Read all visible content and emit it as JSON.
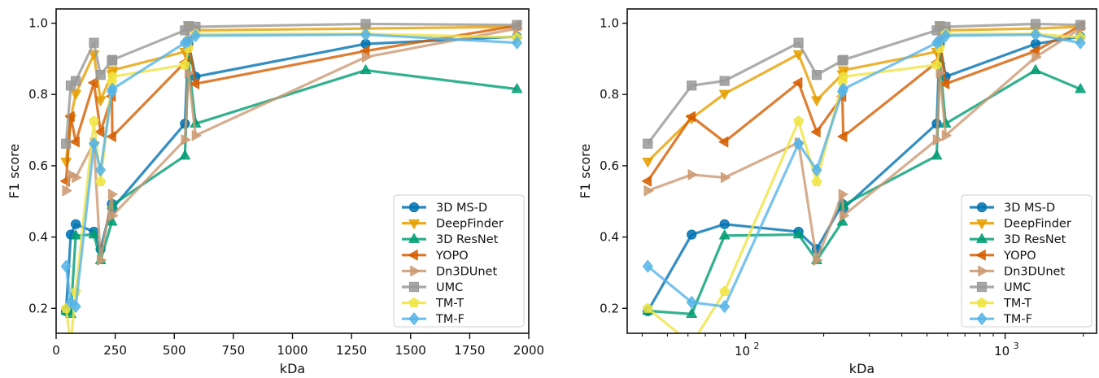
{
  "chart_data": [
    {
      "type": "line",
      "xscale": "linear",
      "xlabel": "kDa",
      "ylabel": "F1 score",
      "xlim": [
        0,
        2000
      ],
      "ylim": [
        0.13,
        1.04
      ],
      "xticks": [
        0,
        250,
        500,
        750,
        1000,
        1250,
        1500,
        1750,
        2000
      ],
      "xtick_labels": [
        "0",
        "250",
        "500",
        "750",
        "1000",
        "1250",
        "1500",
        "1750",
        "2000"
      ],
      "yticks": [
        0.2,
        0.4,
        0.6,
        0.8,
        1.0
      ],
      "ytick_labels": [
        "0.2",
        "0.4",
        "0.6",
        "0.8",
        "1.0"
      ],
      "grid": false,
      "legend_position": "lower-right",
      "x": [
        42,
        62,
        83,
        160,
        188,
        236,
        238,
        545,
        560,
        590,
        1310,
        1950
      ],
      "series": [
        {
          "name": "3D MS-D",
          "color": "#0072b2",
          "marker": "circle",
          "values": [
            0.192,
            0.407,
            0.436,
            0.415,
            0.366,
            0.493,
            0.48,
            0.718,
            0.944,
            0.85,
            0.942,
            0.962
          ]
        },
        {
          "name": "DeepFinder",
          "color": "#e69f00",
          "marker": "triangle-down",
          "values": [
            0.612,
            0.733,
            0.802,
            0.913,
            0.784,
            0.857,
            0.868,
            0.92,
            0.995,
            0.98,
            0.985,
            0.99
          ]
        },
        {
          "name": "3D ResNet",
          "color": "#009e73",
          "marker": "triangle-up",
          "values": [
            0.193,
            0.184,
            0.404,
            0.407,
            0.335,
            0.443,
            0.49,
            0.628,
            0.895,
            0.718,
            0.868,
            0.815
          ]
        },
        {
          "name": "YOPO",
          "color": "#d55e00",
          "marker": "triangle-left",
          "values": [
            0.557,
            0.738,
            0.667,
            0.833,
            0.695,
            0.795,
            0.682,
            0.89,
            0.95,
            0.83,
            0.922,
            0.993
          ]
        },
        {
          "name": "Dn3DUnet",
          "color": "#cc9a73",
          "marker": "triangle-right",
          "values": [
            0.53,
            0.575,
            0.567,
            0.665,
            0.335,
            0.52,
            0.46,
            0.673,
            0.86,
            0.685,
            0.905,
            0.985
          ]
        },
        {
          "name": "UMC",
          "color": "#999999",
          "marker": "square",
          "values": [
            0.662,
            0.825,
            0.838,
            0.945,
            0.855,
            0.895,
            0.897,
            0.98,
            0.99,
            0.99,
            0.998,
            0.995
          ]
        },
        {
          "name": "TM-T",
          "color": "#f0e442",
          "marker": "pentagon",
          "values": [
            0.2,
            0.1,
            0.247,
            0.725,
            0.555,
            0.835,
            0.85,
            0.883,
            0.93,
            0.97,
            0.97,
            0.96
          ]
        },
        {
          "name": "TM-F",
          "color": "#56b4e9",
          "marker": "diamond",
          "values": [
            0.318,
            0.217,
            0.205,
            0.662,
            0.588,
            0.808,
            0.815,
            0.945,
            0.95,
            0.965,
            0.968,
            0.945
          ]
        }
      ]
    },
    {
      "type": "line",
      "xscale": "log",
      "xlabel": "kDa",
      "ylabel": "F1 score",
      "xlim": [
        35,
        2250
      ],
      "ylim": [
        0.13,
        1.04
      ],
      "xticks": [
        100,
        1000
      ],
      "xtick_labels": [
        "10",
        "10"
      ],
      "xtick_exponents": [
        "2",
        "3"
      ],
      "yticks": [
        0.2,
        0.4,
        0.6,
        0.8,
        1.0
      ],
      "ytick_labels": [
        "0.2",
        "0.4",
        "0.6",
        "0.8",
        "1.0"
      ],
      "grid": false,
      "legend_position": "lower-right",
      "x": [
        42,
        62,
        83,
        160,
        188,
        236,
        238,
        545,
        560,
        590,
        1310,
        1950
      ],
      "series": [
        {
          "name": "3D MS-D",
          "color": "#0072b2",
          "marker": "circle",
          "values": [
            0.192,
            0.407,
            0.436,
            0.415,
            0.366,
            0.493,
            0.48,
            0.718,
            0.944,
            0.85,
            0.942,
            0.962
          ]
        },
        {
          "name": "DeepFinder",
          "color": "#e69f00",
          "marker": "triangle-down",
          "values": [
            0.612,
            0.733,
            0.802,
            0.913,
            0.784,
            0.857,
            0.868,
            0.92,
            0.995,
            0.98,
            0.985,
            0.99
          ]
        },
        {
          "name": "3D ResNet",
          "color": "#009e73",
          "marker": "triangle-up",
          "values": [
            0.193,
            0.184,
            0.404,
            0.407,
            0.335,
            0.443,
            0.49,
            0.628,
            0.895,
            0.718,
            0.868,
            0.815
          ]
        },
        {
          "name": "YOPO",
          "color": "#d55e00",
          "marker": "triangle-left",
          "values": [
            0.557,
            0.738,
            0.667,
            0.833,
            0.695,
            0.795,
            0.682,
            0.89,
            0.95,
            0.83,
            0.922,
            0.993
          ]
        },
        {
          "name": "Dn3DUnet",
          "color": "#cc9a73",
          "marker": "triangle-right",
          "values": [
            0.53,
            0.575,
            0.567,
            0.665,
            0.335,
            0.52,
            0.46,
            0.673,
            0.86,
            0.685,
            0.905,
            0.985
          ]
        },
        {
          "name": "UMC",
          "color": "#999999",
          "marker": "square",
          "values": [
            0.662,
            0.825,
            0.838,
            0.945,
            0.855,
            0.895,
            0.897,
            0.98,
            0.99,
            0.99,
            0.998,
            0.995
          ]
        },
        {
          "name": "TM-T",
          "color": "#f0e442",
          "marker": "pentagon",
          "values": [
            0.2,
            0.1,
            0.247,
            0.725,
            0.555,
            0.835,
            0.85,
            0.883,
            0.93,
            0.97,
            0.97,
            0.96
          ]
        },
        {
          "name": "TM-F",
          "color": "#56b4e9",
          "marker": "diamond",
          "values": [
            0.318,
            0.217,
            0.205,
            0.662,
            0.588,
            0.808,
            0.815,
            0.945,
            0.95,
            0.965,
            0.968,
            0.945
          ]
        }
      ]
    }
  ]
}
